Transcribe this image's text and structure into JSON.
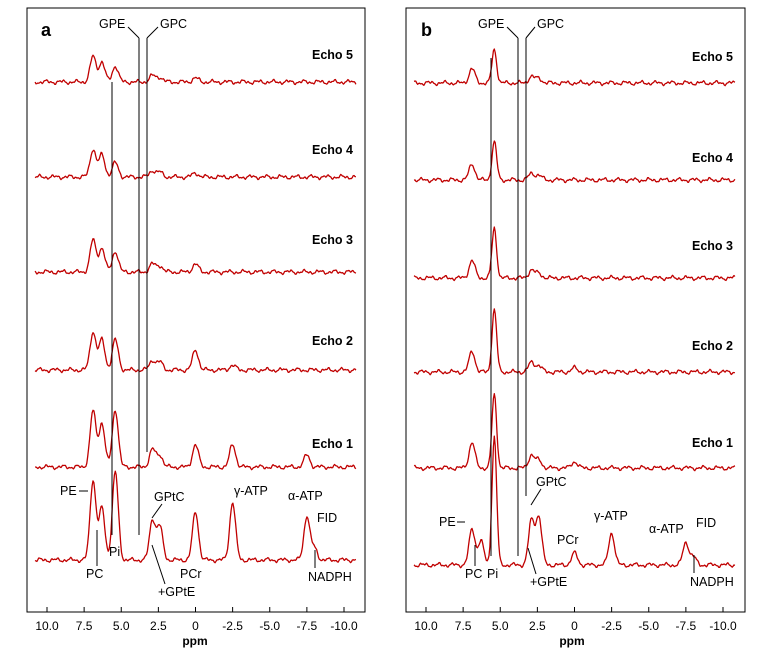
{
  "chart_data": [
    {
      "panel": "a",
      "type": "line",
      "xlabel": "ppm",
      "xlim": [
        11.0,
        -11.0
      ],
      "x_reversed": true,
      "xticks": [
        10.0,
        7.5,
        5.0,
        2.5,
        0.0,
        -2.5,
        -5.0,
        -7.5,
        -10.0
      ],
      "xtick_labels": [
        "10.0",
        "7.5",
        "5.0",
        "2.5",
        "0",
        "-2.5",
        "-5.0",
        "-7.5",
        "-10.0"
      ],
      "series": [
        {
          "name": "Echo 5",
          "peaks": [
            {
              "ppm": 6.9,
              "amp": 0.32
            },
            {
              "ppm": 6.3,
              "amp": 0.25
            },
            {
              "ppm": 5.4,
              "amp": 0.2
            },
            {
              "ppm": 2.9,
              "amp": 0.08
            },
            {
              "ppm": 2.4,
              "amp": 0.06
            },
            {
              "ppm": 0.0,
              "amp": 0.05
            }
          ]
        },
        {
          "name": "Echo 4",
          "peaks": [
            {
              "ppm": 6.9,
              "amp": 0.35
            },
            {
              "ppm": 6.3,
              "amp": 0.28
            },
            {
              "ppm": 5.4,
              "amp": 0.18
            },
            {
              "ppm": 2.9,
              "amp": 0.08
            },
            {
              "ppm": 2.4,
              "amp": 0.06
            },
            {
              "ppm": 0.0,
              "amp": 0.05
            }
          ]
        },
        {
          "name": "Echo 3",
          "peaks": [
            {
              "ppm": 6.9,
              "amp": 0.4
            },
            {
              "ppm": 6.3,
              "amp": 0.3
            },
            {
              "ppm": 5.4,
              "amp": 0.26
            },
            {
              "ppm": 2.9,
              "amp": 0.1
            },
            {
              "ppm": 2.4,
              "amp": 0.08
            },
            {
              "ppm": 0.0,
              "amp": 0.1
            }
          ]
        },
        {
          "name": "Echo 2",
          "peaks": [
            {
              "ppm": 6.9,
              "amp": 0.48
            },
            {
              "ppm": 6.3,
              "amp": 0.38
            },
            {
              "ppm": 5.4,
              "amp": 0.38
            },
            {
              "ppm": 2.9,
              "amp": 0.12
            },
            {
              "ppm": 2.4,
              "amp": 0.1
            },
            {
              "ppm": 0.0,
              "amp": 0.25
            },
            {
              "ppm": -2.5,
              "amp": 0.06
            }
          ]
        },
        {
          "name": "Echo 1",
          "peaks": [
            {
              "ppm": 6.9,
              "amp": 0.7
            },
            {
              "ppm": 6.3,
              "amp": 0.55
            },
            {
              "ppm": 5.4,
              "amp": 0.72
            },
            {
              "ppm": 2.9,
              "amp": 0.22
            },
            {
              "ppm": 2.4,
              "amp": 0.15
            },
            {
              "ppm": 0.0,
              "amp": 0.28
            },
            {
              "ppm": -2.5,
              "amp": 0.28
            },
            {
              "ppm": -7.5,
              "amp": 0.15
            }
          ]
        },
        {
          "name": "FID",
          "peaks": [
            {
              "ppm": 6.9,
              "amp": 1.0
            },
            {
              "ppm": 6.3,
              "amp": 0.65
            },
            {
              "ppm": 5.4,
              "amp": 1.1
            },
            {
              "ppm": 2.9,
              "amp": 0.5
            },
            {
              "ppm": 2.4,
              "amp": 0.42
            },
            {
              "ppm": 0.0,
              "amp": 0.6
            },
            {
              "ppm": -2.5,
              "amp": 0.72
            },
            {
              "ppm": -7.5,
              "amp": 0.55
            },
            {
              "ppm": -8.0,
              "amp": 0.15
            }
          ]
        }
      ],
      "annotations": [
        "GPE",
        "GPC",
        "PE",
        "PC",
        "Pi",
        "GPtC",
        "+GPtE",
        "PCr",
        "γ-ATP",
        "α-ATP",
        "FID",
        "NADPH"
      ]
    },
    {
      "panel": "b",
      "type": "line",
      "xlabel": "ppm",
      "xlim": [
        11.0,
        -11.0
      ],
      "x_reversed": true,
      "xticks": [
        10.0,
        7.5,
        5.0,
        2.5,
        0.0,
        -2.5,
        -5.0,
        -7.5,
        -10.0
      ],
      "xtick_labels": [
        "10.0",
        "7.5",
        "5.0",
        "2.5",
        "0",
        "-2.5",
        "-5.0",
        "-7.5",
        "-10.0"
      ],
      "series": [
        {
          "name": "Echo 5",
          "peaks": [
            {
              "ppm": 6.9,
              "amp": 0.18
            },
            {
              "ppm": 5.4,
              "amp": 0.42
            },
            {
              "ppm": 2.9,
              "amp": 0.08
            },
            {
              "ppm": 2.4,
              "amp": 0.06
            }
          ]
        },
        {
          "name": "Echo 4",
          "peaks": [
            {
              "ppm": 6.9,
              "amp": 0.2
            },
            {
              "ppm": 5.4,
              "amp": 0.48
            },
            {
              "ppm": 2.9,
              "amp": 0.08
            },
            {
              "ppm": 2.4,
              "amp": 0.06
            }
          ]
        },
        {
          "name": "Echo 3",
          "peaks": [
            {
              "ppm": 6.9,
              "amp": 0.22
            },
            {
              "ppm": 5.4,
              "amp": 0.62
            },
            {
              "ppm": 2.9,
              "amp": 0.1
            },
            {
              "ppm": 2.4,
              "amp": 0.06
            }
          ]
        },
        {
          "name": "Echo 2",
          "peaks": [
            {
              "ppm": 6.9,
              "amp": 0.26
            },
            {
              "ppm": 5.4,
              "amp": 0.78
            },
            {
              "ppm": 2.9,
              "amp": 0.12
            },
            {
              "ppm": 2.4,
              "amp": 0.08
            },
            {
              "ppm": 0.0,
              "amp": 0.05
            }
          ]
        },
        {
          "name": "Echo 1",
          "peaks": [
            {
              "ppm": 6.9,
              "amp": 0.32
            },
            {
              "ppm": 5.4,
              "amp": 0.92
            },
            {
              "ppm": 2.9,
              "amp": 0.16
            },
            {
              "ppm": 2.4,
              "amp": 0.1
            },
            {
              "ppm": 0.0,
              "amp": 0.08
            }
          ]
        },
        {
          "name": "FID",
          "peaks": [
            {
              "ppm": 6.9,
              "amp": 0.45
            },
            {
              "ppm": 6.3,
              "amp": 0.3
            },
            {
              "ppm": 5.4,
              "amp": 1.6
            },
            {
              "ppm": 2.9,
              "amp": 0.55
            },
            {
              "ppm": 2.4,
              "amp": 0.6
            },
            {
              "ppm": 0.0,
              "amp": 0.15
            },
            {
              "ppm": -2.5,
              "amp": 0.4
            },
            {
              "ppm": -7.5,
              "amp": 0.28
            },
            {
              "ppm": -8.0,
              "amp": 0.1
            }
          ]
        }
      ],
      "annotations": [
        "GPE",
        "GPC",
        "PE",
        "PC",
        "Pi",
        "GPtC",
        "+GPtE",
        "PCr",
        "γ-ATP",
        "α-ATP",
        "FID",
        "NADPH"
      ]
    }
  ],
  "panels": {
    "a": {
      "letter": "a",
      "echo_labels": [
        "Echo 5",
        "Echo 4",
        "Echo 3",
        "Echo 2",
        "Echo 1"
      ],
      "labels": {
        "gpe": "GPE",
        "gpc": "GPC",
        "pe": "PE",
        "pc": "PC",
        "pi": "Pi",
        "gptc": "GPtC",
        "gpte": "+GPtE",
        "pcr": "PCr",
        "gatp": "γ-ATP",
        "aatp": "α-ATP",
        "fid": "FID",
        "nadph": "NADPH"
      },
      "xlabel": "ppm"
    },
    "b": {
      "letter": "b",
      "echo_labels": [
        "Echo 5",
        "Echo 4",
        "Echo 3",
        "Echo 2",
        "Echo 1"
      ],
      "labels": {
        "gpe": "GPE",
        "gpc": "GPC",
        "pe": "PE",
        "pc": "PC",
        "pi": "Pi",
        "gptc": "GPtC",
        "gpte": "+GPtE",
        "pcr": "PCr",
        "gatp": "γ-ATP",
        "aatp": "α-ATP",
        "fid": "FID",
        "nadph": "NADPH"
      },
      "xlabel": "ppm"
    }
  },
  "colors": {
    "trace": "#c00000"
  }
}
